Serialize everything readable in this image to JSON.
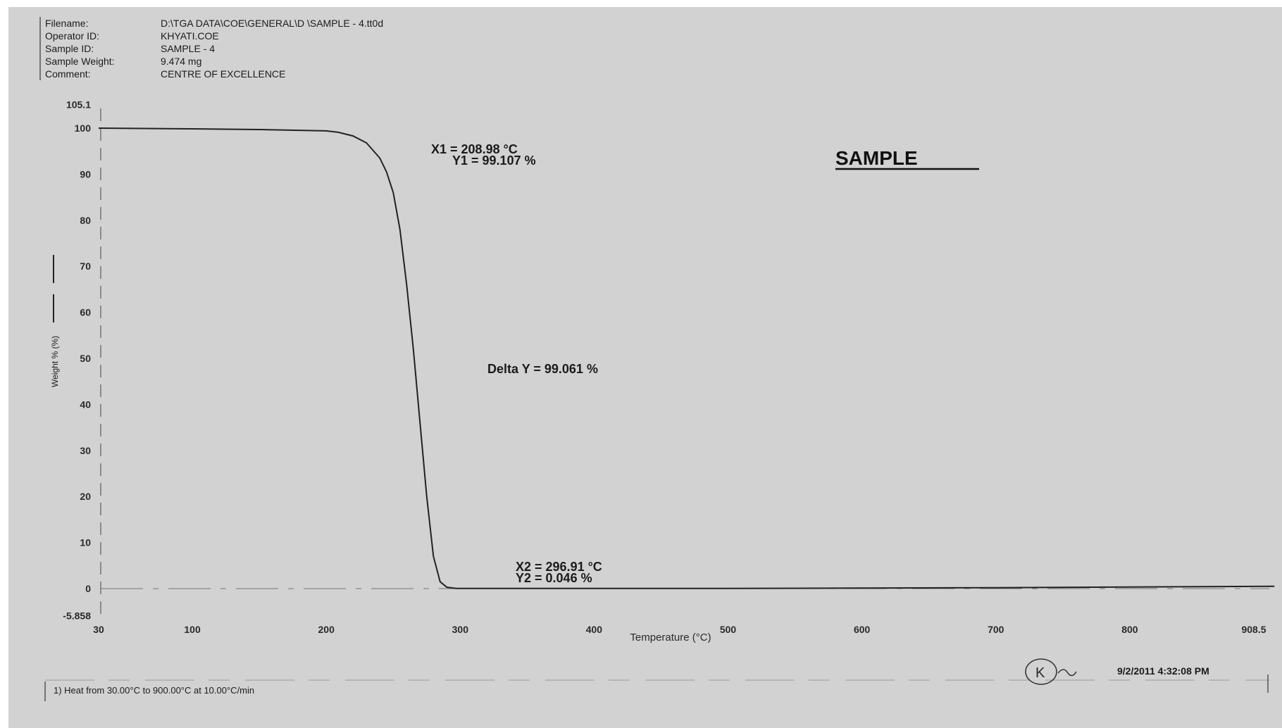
{
  "header": {
    "rows": [
      {
        "label": "Filename:",
        "value": "D:\\TGA DATA\\COE\\GENERAL\\D   \\SAMPLE - 4.tt0d"
      },
      {
        "label": "Operator ID:",
        "value": "KHYATI.COE"
      },
      {
        "label": "Sample ID:",
        "value": "SAMPLE - 4"
      },
      {
        "label": "Sample Weight:",
        "value": "9.474 mg"
      },
      {
        "label": "Comment:",
        "value": "CENTRE OF EXCELLENCE"
      }
    ]
  },
  "footer": {
    "method": "1)  Heat from 30.00°C to 900.00°C at 10.00°C/min",
    "signature_text": "K",
    "timestamp": "9/2/2011 4:32:08 PM"
  },
  "chart_data": {
    "type": "line",
    "title": "SAMPLE",
    "xlabel": "Temperature (°C)",
    "ylabel": "Weight % (%)",
    "xlim": [
      30,
      908
    ],
    "ylim": [
      -5.858,
      105.1
    ],
    "x_ticks": [
      "30",
      "100",
      "200",
      "300",
      "400",
      "500",
      "600",
      "700",
      "800",
      "908.5"
    ],
    "y_ticks": [
      "105.1",
      "100",
      "90",
      "80",
      "70",
      "60",
      "50",
      "40",
      "30",
      "20",
      "10",
      "0",
      "-5.858"
    ],
    "grid": false,
    "colors": {
      "line": "#222222",
      "background": "#d2d2d2"
    },
    "series": [
      {
        "x": [
          30,
          100,
          150,
          200,
          209,
          220,
          230,
          240,
          245,
          250,
          255,
          260,
          265,
          270,
          275,
          280,
          285,
          290,
          297,
          320,
          400,
          500,
          600,
          700,
          800,
          908
        ],
        "y": [
          100,
          99.85,
          99.7,
          99.4,
          99.1,
          98.3,
          96.8,
          93.5,
          90.5,
          86,
          78,
          66,
          52,
          36,
          20,
          7,
          1.5,
          0.3,
          0.05,
          0.04,
          0.04,
          0.05,
          0.1,
          0.2,
          0.35,
          0.5
        ]
      }
    ],
    "annotations": [
      {
        "x1": "X1 = 208.98 °C",
        "y1": "Y1 = 99.107 %"
      },
      {
        "delta": "Delta Y = 99.061 %"
      },
      {
        "x2": "X2 = 296.91 °C",
        "y2": "Y2 = 0.046 %"
      }
    ]
  }
}
